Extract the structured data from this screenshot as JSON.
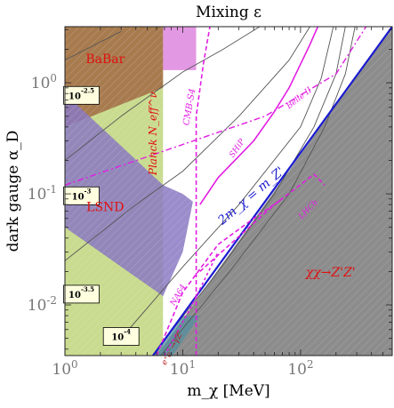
{
  "chart_data": {
    "type": "line",
    "title": "Mixing ε",
    "xlabel": "m_χ [MeV]",
    "ylabel": "dark gauge α_D",
    "xscale": "log",
    "yscale": "log",
    "xlim": [
      1,
      600
    ],
    "ylim": [
      0.0035,
      3.2
    ],
    "x_ticks": [
      {
        "v": 1,
        "label": "10^0"
      },
      {
        "v": 10,
        "label": "10^1"
      },
      {
        "v": 100,
        "label": "10^2"
      }
    ],
    "y_ticks": [
      {
        "v": 0.01,
        "label": "10^-2"
      },
      {
        "v": 0.1,
        "label": "10^-1"
      },
      {
        "v": 1,
        "label": "10^0"
      }
    ],
    "contours": [
      {
        "label": "10^-2.5",
        "label_at": [
          1.38,
          0.77
        ],
        "points": [
          [
            1,
            1.6
          ],
          [
            3,
            2.9
          ]
        ]
      },
      {
        "label": "10^-3",
        "label_at": [
          1.38,
          0.096
        ],
        "points": [
          [
            1,
            0.2
          ],
          [
            3,
            0.5
          ],
          [
            10,
            1.25
          ],
          [
            22,
            2.0
          ],
          [
            45,
            3.2
          ]
        ]
      },
      {
        "label": "10^-3.5",
        "label_at": [
          1.38,
          0.0125
        ],
        "points": [
          [
            1,
            0.025
          ],
          [
            4,
            0.08
          ],
          [
            10,
            0.16
          ],
          [
            30,
            0.5
          ],
          [
            80,
            1.6
          ],
          [
            120,
            3.2
          ]
        ]
      },
      {
        "label": "10^-4",
        "label_at": [
          3.0,
          0.0052
        ],
        "points": [
          [
            3,
            0.005
          ],
          [
            10,
            0.022
          ],
          [
            30,
            0.08
          ],
          [
            100,
            0.4
          ],
          [
            150,
            1.1
          ],
          [
            190,
            3.2
          ]
        ]
      },
      {
        "label": "",
        "points": [
          [
            5.5,
            0.0035
          ],
          [
            20,
            0.02
          ],
          [
            60,
            0.1
          ],
          [
            130,
            0.4
          ],
          [
            200,
            1.2
          ],
          [
            240,
            3.2
          ]
        ]
      },
      {
        "label": "",
        "points": [
          [
            6.5,
            0.0035
          ],
          [
            25,
            0.02
          ],
          [
            80,
            0.1
          ],
          [
            160,
            0.4
          ],
          [
            240,
            1.2
          ],
          [
            290,
            3.2
          ]
        ]
      }
    ],
    "series": [
      {
        "label": "2m_χ = m_Z'",
        "label_at": [
          40,
          0.09
        ],
        "points": [
          [
            5.6,
            0.0035
          ],
          [
            600,
            3.2
          ]
        ]
      },
      {
        "label": "Belle II",
        "label_at": [
          100,
          0.7
        ],
        "points": [
          [
            1,
            0.12
          ],
          [
            50,
            0.5
          ],
          [
            200,
            1.2
          ],
          [
            360,
            3.2
          ]
        ]
      },
      {
        "label": "SHiP",
        "label_at": [
          30,
          0.25
        ],
        "points": [
          [
            14,
            0.08
          ],
          [
            20,
            0.14
          ],
          [
            40,
            0.3
          ],
          [
            60,
            0.55
          ],
          [
            80,
            0.9
          ],
          [
            120,
            2.2
          ],
          [
            140,
            3.2
          ]
        ]
      },
      {
        "label": "LHCb",
        "label_at": [
          120,
          0.07
        ],
        "points": [
          [
            14,
            0.02
          ],
          [
            60,
            0.08
          ],
          [
            130,
            0.15
          ],
          [
            160,
            0.12
          ]
        ]
      },
      {
        "label": "CMB-S4",
        "label_at": [
          12,
          0.6
        ],
        "points": [
          [
            13,
            0.0035
          ],
          [
            13,
            0.5
          ],
          [
            15,
            1.5
          ],
          [
            17,
            3.2
          ]
        ]
      },
      {
        "label": "NA64",
        "label_at": [
          9.5,
          0.012
        ],
        "points": [
          [
            6,
            0.0035
          ],
          [
            10,
            0.013
          ],
          [
            20,
            0.035
          ],
          [
            40,
            0.06
          ],
          [
            70,
            0.09
          ]
        ]
      },
      {
        "label": "e⁺e⁻→γZ'",
        "label_at": [
          8.5,
          0.004
        ],
        "points": [
          [
            7,
            0.0035
          ],
          [
            12,
            0.01
          ],
          [
            20,
            0.03
          ]
        ]
      }
    ],
    "regions": [
      {
        "label": "BaBar",
        "label_at": [
          2.2,
          1.5
        ],
        "color": "#8b2c1a",
        "points": [
          [
            1,
            3.2
          ],
          [
            6.8,
            3.2
          ],
          [
            6.8,
            0.9
          ],
          [
            1,
            0.4
          ]
        ]
      },
      {
        "label": "Planck N_eff^ν",
        "label_at": [
          6.0,
          0.35
        ],
        "color": "#b7cf6a",
        "points": [
          [
            1,
            3.2
          ],
          [
            6.8,
            3.2
          ],
          [
            6.8,
            0.0035
          ],
          [
            1,
            0.0035
          ]
        ]
      },
      {
        "label": "LSND",
        "label_at": [
          2.2,
          0.07
        ],
        "color": "#8a78c2",
        "points": [
          [
            1,
            0.8
          ],
          [
            6.8,
            0.12
          ],
          [
            10,
            0.1
          ],
          [
            12.2,
            0.085
          ],
          [
            10,
            0.03
          ],
          [
            6.8,
            0.012
          ],
          [
            1,
            0.05
          ]
        ]
      },
      {
        "label": "χχ→Z'Z'",
        "label_at": [
          180,
          0.018
        ],
        "color": "#8c8c8c",
        "points": [
          [
            6,
            0.0035
          ],
          [
            600,
            3.2
          ],
          [
            600,
            0.0035
          ]
        ]
      }
    ]
  }
}
